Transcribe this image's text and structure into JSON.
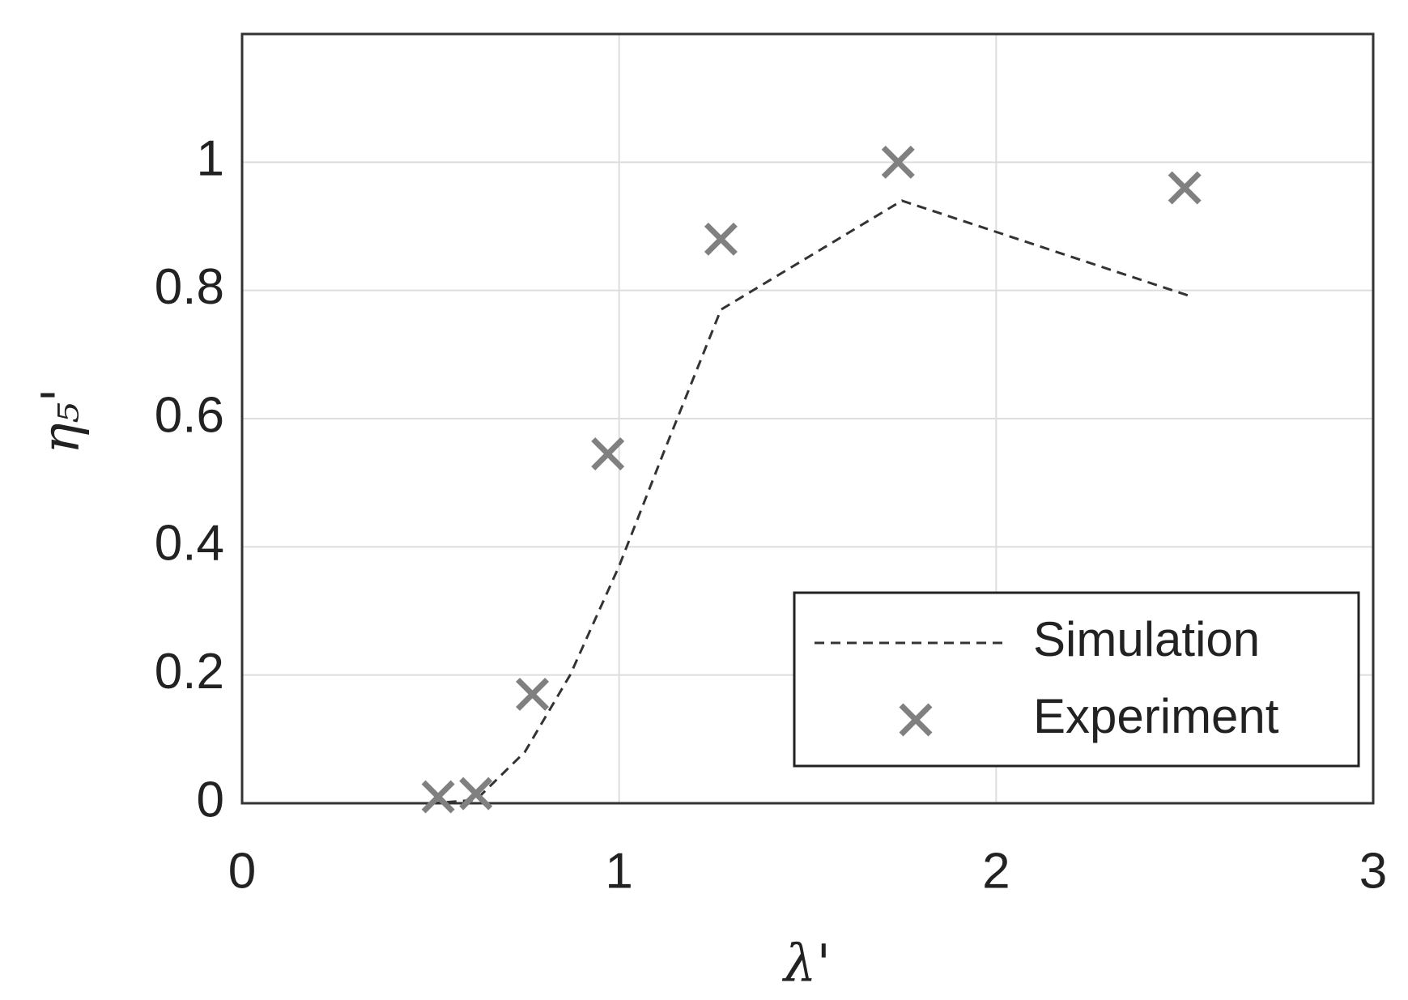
{
  "chart_data": {
    "type": "scatter-line",
    "xlabel": "λ'",
    "ylabel": "η₅'",
    "xlim": [
      0,
      3
    ],
    "ylim": [
      0,
      1.2
    ],
    "xticks": [
      0,
      1,
      2,
      3
    ],
    "yticks": [
      0,
      {
        "value": 0.2,
        "label": "0.2"
      },
      {
        "value": 0.4,
        "label": "0.4"
      },
      {
        "value": 0.6,
        "label": "0.6"
      },
      {
        "value": 0.8,
        "label": "0.8"
      },
      1
    ],
    "grid": true,
    "legend": "lower right",
    "series": [
      {
        "name": "Simulation",
        "color": "#333333",
        "style": "dashed",
        "x": [
          0.5,
          0.62,
          0.75,
          0.87,
          1.0,
          1.12,
          1.27,
          1.75,
          2.52
        ],
        "values": [
          0,
          0.005,
          0.08,
          0.2,
          0.37,
          0.55,
          0.77,
          0.94,
          0.79
        ]
      },
      {
        "name": "Experiment",
        "color": "#808080",
        "style": "marker",
        "x": [
          0.52,
          0.62,
          0.77,
          0.97,
          1.27,
          1.74,
          2.5
        ],
        "values": [
          0.01,
          0.015,
          0.17,
          0.545,
          0.88,
          1.0,
          0.96
        ]
      }
    ]
  }
}
